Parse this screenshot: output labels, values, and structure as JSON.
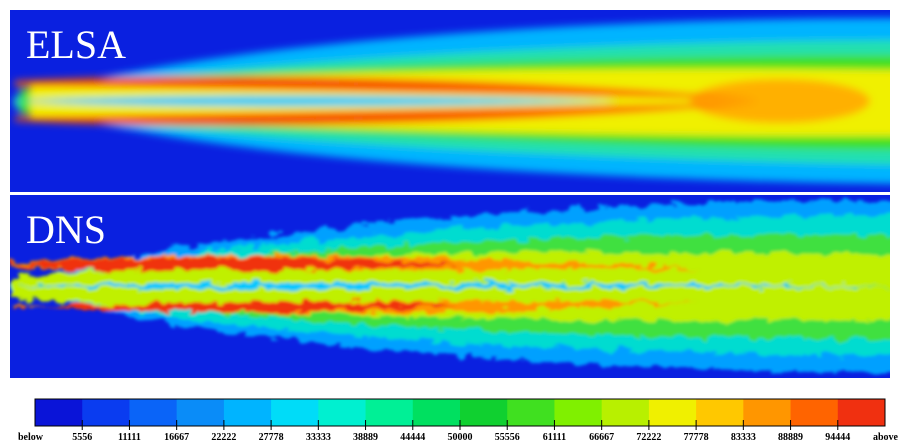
{
  "panels": [
    {
      "label": "ELSA"
    },
    {
      "label": "DNS"
    }
  ],
  "colorbar": {
    "levels": [
      "below",
      5556,
      11111,
      16667,
      22222,
      27778,
      33333,
      38889,
      44444,
      50000,
      55556,
      61111,
      66667,
      72222,
      77778,
      83333,
      88889,
      94444,
      "above"
    ],
    "colors": [
      "#0a14d8",
      "#0a3cf0",
      "#0a64f8",
      "#0a8cf8",
      "#00b4ff",
      "#00dcf8",
      "#00f0d0",
      "#00f096",
      "#00e060",
      "#10d030",
      "#40e020",
      "#80f000",
      "#b8f000",
      "#f0f000",
      "#ffc800",
      "#ff9600",
      "#ff6400",
      "#f03010"
    ]
  }
}
